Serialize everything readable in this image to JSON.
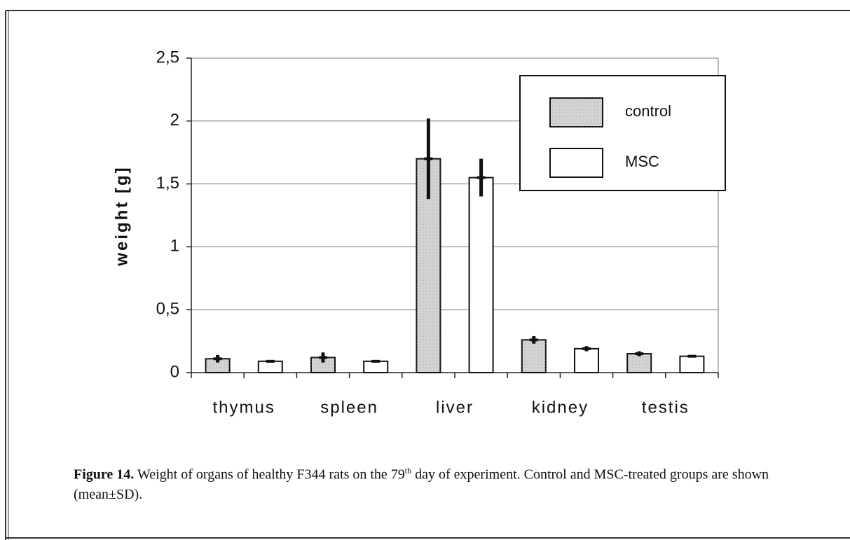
{
  "chart_data": {
    "type": "bar",
    "y_label": "weight [g]",
    "categories": [
      "thymus",
      "spleen",
      "liver",
      "kidney",
      "testis"
    ],
    "series": [
      {
        "name": "control",
        "color": "#d4d4d4",
        "values": [
          0.11,
          0.12,
          1.7,
          0.26,
          0.15
        ],
        "errors": [
          0.03,
          0.04,
          0.32,
          0.03,
          0.02
        ]
      },
      {
        "name": "MSC",
        "color": "#ffffff",
        "values": [
          0.09,
          0.09,
          1.55,
          0.19,
          0.13
        ],
        "errors": [
          0.01,
          0.01,
          0.15,
          0.02,
          0.01
        ]
      }
    ],
    "ylim": [
      0,
      2.5
    ],
    "yticks": [
      0,
      {
        "value": 0.5,
        "label": "0,5"
      },
      1,
      {
        "value": 1.5,
        "label": "1,5"
      },
      2,
      {
        "value": 2.5,
        "label": "2,5"
      }
    ],
    "grid": true,
    "legend": "upper right"
  },
  "caption": {
    "label": "Figure 14.",
    "text": " Weight of organs of healthy F344 rats on the  79",
    "sup": "th",
    "text2": " day of experiment. Control and MSC-treated groups are shown (mean±SD)."
  }
}
